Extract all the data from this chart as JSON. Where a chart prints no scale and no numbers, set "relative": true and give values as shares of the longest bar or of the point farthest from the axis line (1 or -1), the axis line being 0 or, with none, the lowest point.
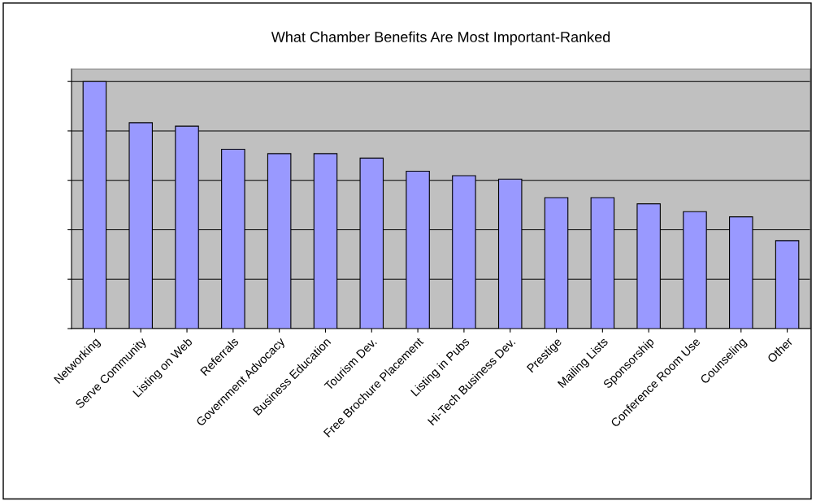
{
  "chart_data": {
    "type": "bar",
    "title": "What Chamber Benefits Are Most Important-Ranked",
    "categories": [
      "Networking",
      "Serve Community",
      "Listing on Web",
      "Referrals",
      "Government Advocacy",
      "Business Education",
      "Tourism Dev.",
      "Free Brochure Placement",
      "Listing in Pubs",
      "Hi-Tech Business Dev.",
      "Prestige",
      "Mailing Lists",
      "Sponsorship",
      "Conference Room Use",
      "Counseling",
      "Other"
    ],
    "values": [
      1,
      0.833,
      0.819,
      0.726,
      0.708,
      0.708,
      0.69,
      0.637,
      0.619,
      0.605,
      0.53,
      0.53,
      0.505,
      0.473,
      0.452,
      0.356
    ],
    "color": "#9999ff",
    "relative": true,
    "grid": "y"
  }
}
